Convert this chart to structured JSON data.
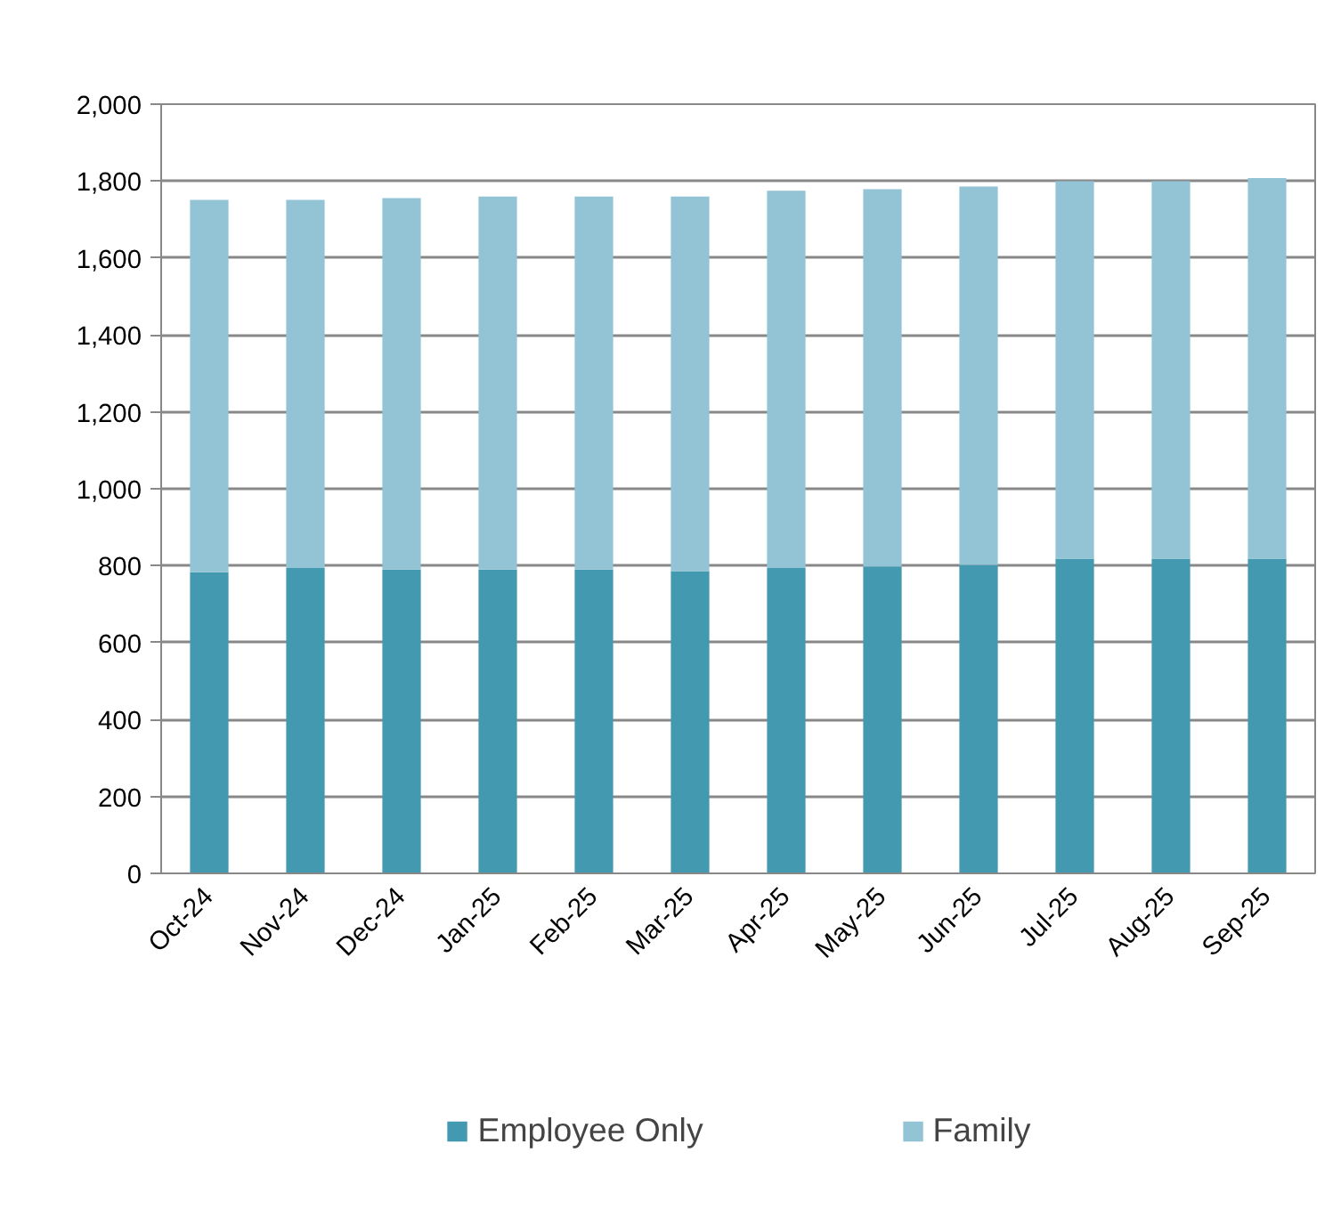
{
  "chart_data": {
    "type": "bar",
    "stacked": true,
    "categories": [
      "Oct-24",
      "Nov-24",
      "Dec-24",
      "Jan-25",
      "Feb-25",
      "Mar-25",
      "Apr-25",
      "May-25",
      "Jun-25",
      "Jul-25",
      "Aug-25",
      "Sep-25"
    ],
    "series": [
      {
        "name": "Employee Only",
        "color": "#4399b0",
        "values": [
          783,
          794,
          790,
          790,
          790,
          786,
          794,
          798,
          802,
          818,
          818,
          818
        ]
      },
      {
        "name": "Family",
        "color": "#93c4d5",
        "values": [
          968,
          957,
          966,
          970,
          970,
          974,
          981,
          981,
          984,
          982,
          982,
          990
        ]
      }
    ],
    "ylim": [
      0,
      2000
    ],
    "yticks": [
      {
        "value": 0,
        "label": "0"
      },
      {
        "value": 200,
        "label": "200"
      },
      {
        "value": 400,
        "label": "400"
      },
      {
        "value": 600,
        "label": "600"
      },
      {
        "value": 800,
        "label": "800"
      },
      {
        "value": 1000,
        "label": "1,000"
      },
      {
        "value": 1200,
        "label": "1,200"
      },
      {
        "value": 1400,
        "label": "1,400"
      },
      {
        "value": 1600,
        "label": "1,600"
      },
      {
        "value": 1800,
        "label": "1,800"
      },
      {
        "value": 2000,
        "label": "2,000"
      }
    ],
    "grid": "y",
    "legend": "bottom"
  }
}
